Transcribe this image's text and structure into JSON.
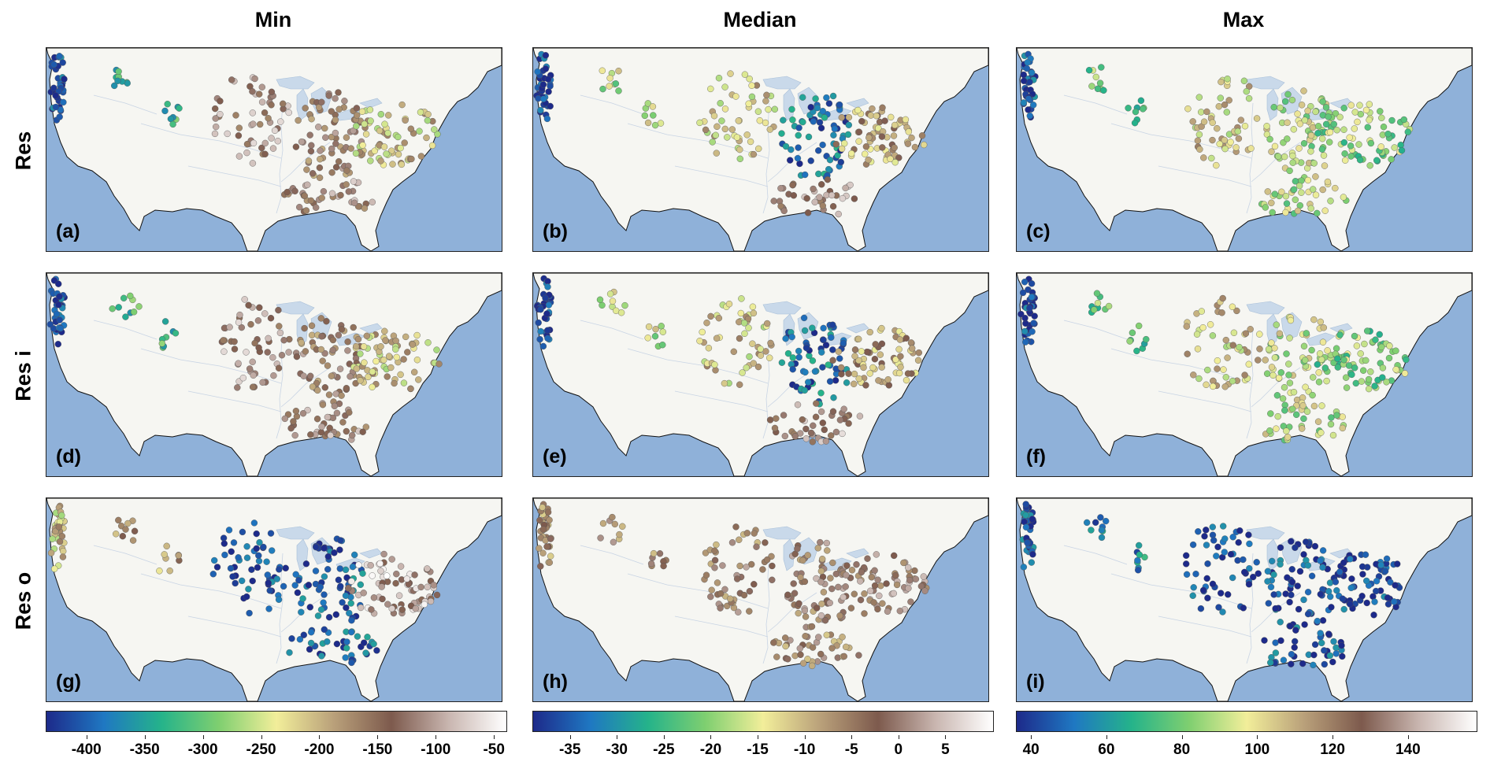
{
  "column_titles": [
    "Min",
    "Median",
    "Max"
  ],
  "row_titles": [
    "Res",
    "Res i",
    "Res o"
  ],
  "panels": [
    {
      "label": "(a)",
      "row": 0,
      "col": 0,
      "pattern": "min"
    },
    {
      "label": "(b)",
      "row": 0,
      "col": 1,
      "pattern": "median"
    },
    {
      "label": "(c)",
      "row": 0,
      "col": 2,
      "pattern": "max"
    },
    {
      "label": "(d)",
      "row": 1,
      "col": 0,
      "pattern": "min"
    },
    {
      "label": "(e)",
      "row": 1,
      "col": 1,
      "pattern": "median"
    },
    {
      "label": "(f)",
      "row": 1,
      "col": 2,
      "pattern": "max"
    },
    {
      "label": "(g)",
      "row": 2,
      "col": 0,
      "pattern": "min_out"
    },
    {
      "label": "(h)",
      "row": 2,
      "col": 1,
      "pattern": "median_out"
    },
    {
      "label": "(i)",
      "row": 2,
      "col": 2,
      "pattern": "max_out"
    }
  ],
  "colorbars": [
    {
      "name": "min",
      "range": [
        -435,
        -40
      ],
      "ticks": [
        "-400",
        "-350",
        "-300",
        "-250",
        "-200",
        "-150",
        "-100",
        "-50"
      ],
      "tick_values": [
        -400,
        -350,
        -300,
        -250,
        -200,
        -150,
        -100,
        -50
      ]
    },
    {
      "name": "median",
      "range": [
        -39,
        10
      ],
      "ticks": [
        "-35",
        "-30",
        "-25",
        "-20",
        "-15",
        "-10",
        "-5",
        "0",
        "5"
      ],
      "tick_values": [
        -35,
        -30,
        -25,
        -20,
        -15,
        -10,
        -5,
        0,
        5
      ]
    },
    {
      "name": "max",
      "range": [
        36,
        158
      ],
      "ticks": [
        "40",
        "60",
        "80",
        "100",
        "120",
        "140"
      ],
      "tick_values": [
        40,
        60,
        80,
        100,
        120,
        140
      ]
    }
  ],
  "colormap": [
    "#1d2a8a",
    "#1f78c2",
    "#25b38a",
    "#7fcf70",
    "#f2ee9a",
    "#b9a07a",
    "#7d5a4d",
    "#c9b6b0",
    "#ffffff"
  ],
  "colors": {
    "ocean": "#8fb1d9",
    "land": "#f6f6f2",
    "lakes": "#c9d9ea",
    "coast": "#111111"
  }
}
